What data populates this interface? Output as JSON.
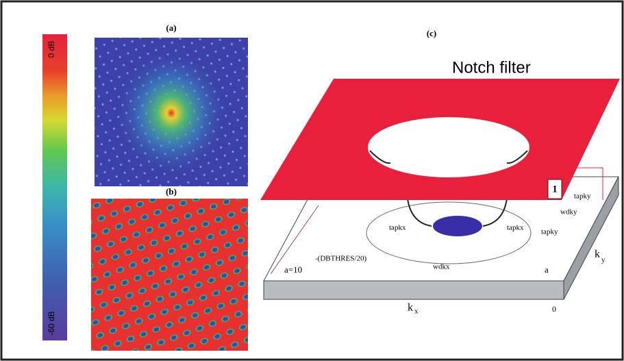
{
  "colorbar": {
    "top_label": "0 dB",
    "bottom_label": "-60 dB"
  },
  "panels": {
    "a": "(a)",
    "b": "(b)",
    "c": "(c)"
  },
  "notch": {
    "title": "Notch filter",
    "level": "1",
    "labels": {
      "tapky_top": "tapky",
      "wdky": "wdky",
      "tapky_bottom": "tapky",
      "tapkx_left": "tapkx",
      "tapkx_right": "tapkx",
      "wdkx": "wdkx"
    },
    "formula": {
      "base": "a=10",
      "exponent": "-(DBTHRES/20)"
    },
    "corner_a": "a",
    "origin": "0",
    "kx": {
      "base": "k",
      "sub": "x"
    },
    "ky": {
      "base": "k",
      "sub": "y"
    }
  }
}
